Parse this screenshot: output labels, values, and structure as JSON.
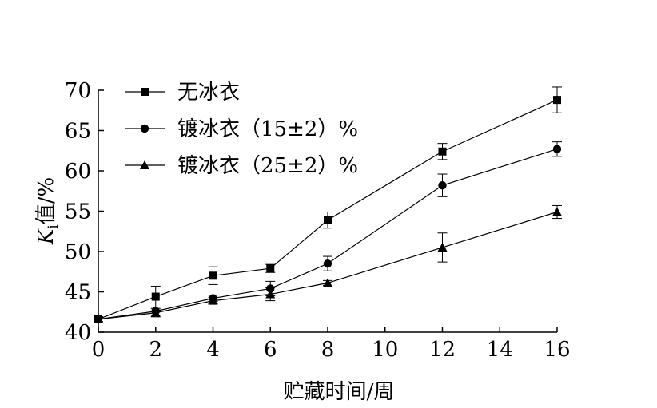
{
  "chart_data": {
    "type": "line",
    "title": "",
    "xlabel": "贮藏时间/周",
    "ylabel_main": "K",
    "ylabel_sub": "i",
    "ylabel_rest": "值/%",
    "xlim": [
      0,
      16
    ],
    "ylim": [
      40,
      70
    ],
    "xticks": [
      0,
      2,
      4,
      6,
      8,
      10,
      12,
      14,
      16
    ],
    "yticks": [
      40,
      45,
      50,
      55,
      60,
      65,
      70
    ],
    "grid": false,
    "legend_position": "top-left",
    "series": [
      {
        "name": "无冰衣",
        "marker": "square",
        "x": [
          0,
          2,
          4,
          6,
          8,
          12,
          16
        ],
        "y": [
          41.6,
          44.4,
          47.0,
          47.9,
          53.9,
          62.4,
          68.8
        ],
        "err": [
          0.3,
          1.3,
          1.1,
          0.5,
          1.0,
          1.0,
          1.6
        ]
      },
      {
        "name": "镀冰衣（15±2）%",
        "marker": "circle",
        "x": [
          0,
          2,
          4,
          6,
          8,
          12,
          16
        ],
        "y": [
          41.6,
          42.6,
          44.2,
          45.4,
          48.5,
          58.2,
          62.7
        ],
        "err": [
          0.3,
          0.5,
          0.4,
          0.9,
          0.9,
          1.4,
          0.9
        ]
      },
      {
        "name": "镀冰衣（25±2）%",
        "marker": "triangle",
        "x": [
          0,
          2,
          4,
          6,
          8,
          12,
          16
        ],
        "y": [
          41.6,
          42.4,
          43.9,
          44.7,
          46.1,
          50.5,
          54.9
        ],
        "err": [
          0.3,
          0.5,
          0.4,
          0.8,
          0.3,
          1.8,
          0.8
        ]
      }
    ]
  }
}
